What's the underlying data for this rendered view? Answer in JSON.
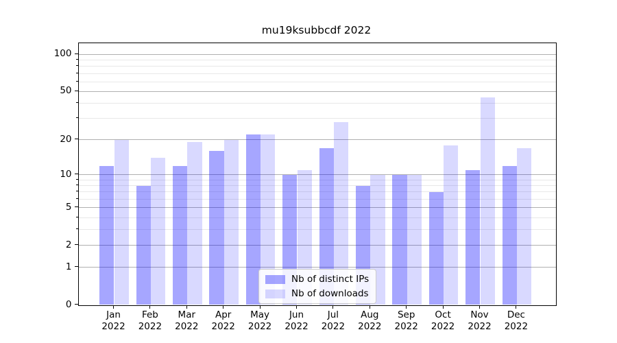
{
  "title": "mu19ksubbcdf 2022",
  "chart_data": {
    "type": "bar",
    "title": "mu19ksubbcdf 2022",
    "categories": [
      "Jan 2022",
      "Feb 2022",
      "Mar 2022",
      "Apr 2022",
      "May 2022",
      "Jun 2022",
      "Jul 2022",
      "Aug 2022",
      "Sep 2022",
      "Oct 2022",
      "Nov 2022",
      "Dec 2022"
    ],
    "series": [
      {
        "name": "Nb of distinct IPs",
        "values": [
          12,
          8,
          12,
          16,
          22,
          10,
          17,
          8,
          10,
          7,
          11,
          12
        ]
      },
      {
        "name": "Nb of downloads",
        "values": [
          20,
          14,
          19,
          20,
          22,
          11,
          28,
          10,
          10,
          18,
          45,
          17
        ]
      }
    ],
    "yscale": "log1p",
    "ylim": [
      0,
      125
    ],
    "y_major_ticks": [
      100,
      50,
      20,
      10,
      5,
      2,
      1,
      0
    ],
    "y_minor_ticks": [
      3,
      4,
      6,
      7,
      8,
      9,
      30,
      40,
      60,
      70,
      80,
      90
    ],
    "grid": true,
    "legend_position": "lower center"
  },
  "legend": {
    "items": [
      {
        "label": "Nb of distinct IPs"
      },
      {
        "label": "Nb of downloads"
      }
    ]
  },
  "colors": {
    "ips_bar": "rgba(0,0,255,0.35)",
    "downloads_bar": "rgba(0,0,255,0.15)",
    "grid_major": "#b0b0b0",
    "grid_minor": "#e8e8e8",
    "axis": "#000000",
    "background": "#ffffff"
  }
}
